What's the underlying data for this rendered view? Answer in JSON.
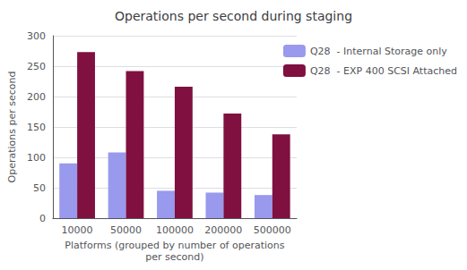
{
  "chart_data": {
    "type": "bar",
    "title": "Operations per second during staging",
    "categories": [
      "10000",
      "50000",
      "100000",
      "200000",
      "500000"
    ],
    "series": [
      {
        "name": "Q28  - Internal Storage only",
        "color": "#9999ee",
        "values": [
          90,
          108,
          45,
          42,
          38
        ]
      },
      {
        "name": "Q28  - EXP 400 SCSI Attached",
        "color": "#7f1040",
        "values": [
          273,
          242,
          216,
          172,
          138
        ]
      }
    ],
    "xlabel": "Platforms (grouped by number of operations\nper second)",
    "ylabel": "Operations per second",
    "ylim": [
      0,
      300
    ],
    "yticks": [
      0,
      50,
      100,
      150,
      200,
      250,
      300
    ],
    "grid": true,
    "legend": "right"
  }
}
